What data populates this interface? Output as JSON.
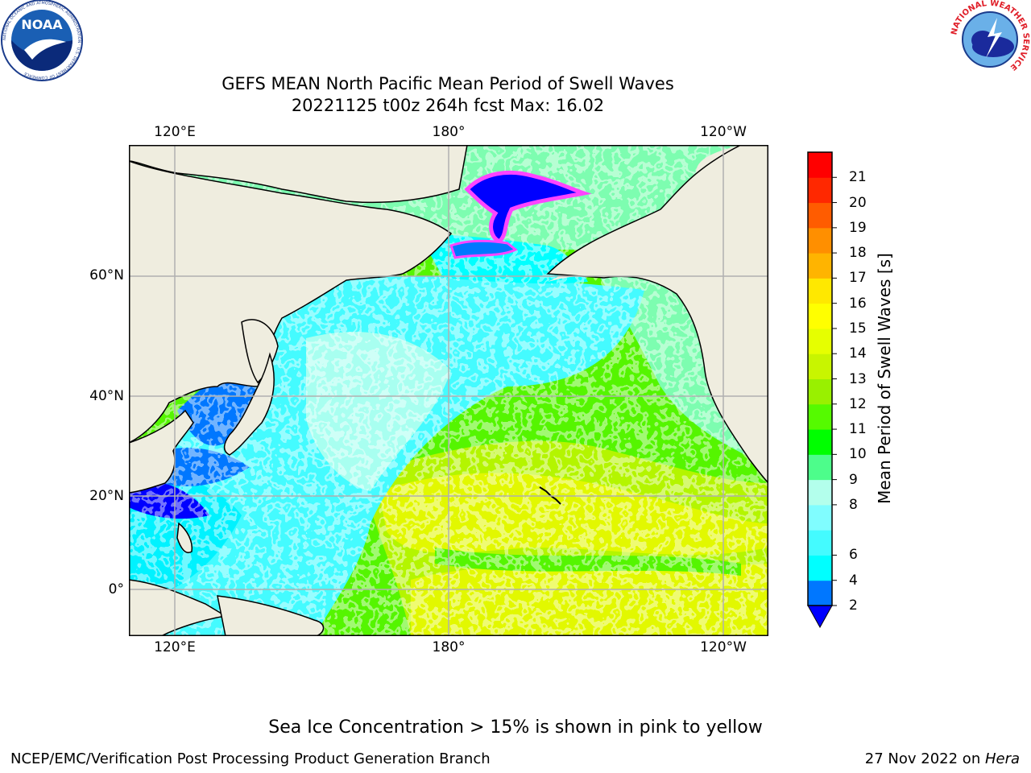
{
  "header": {
    "title_line1": "GEFS MEAN North Pacific Mean Period of Swell Waves",
    "title_line2": "20221125 t00z 264h fcst   Max: 16.02"
  },
  "logos": {
    "noaa_text": "NOAA",
    "noaa_ring_text": "NATIONAL OCEANIC AND ATMOSPHERIC ADMINISTRATION · U.S. DEPARTMENT OF COMMERCE",
    "nws_ring_text": "NATIONAL WEATHER SERVICE"
  },
  "map": {
    "lon_labels": [
      "120°E",
      "180°",
      "120°W"
    ],
    "lat_labels": [
      "60°N",
      "40°N",
      "20°N",
      "0°"
    ],
    "land_color": "#efeddf",
    "coast_color": "#000000",
    "grid_color": "#b0b0b0"
  },
  "chart_data": {
    "type": "heatmap",
    "title": "GEFS MEAN North Pacific Mean Period of Swell Waves",
    "variable": "Mean Period of Swell Waves [s]",
    "max_value": 16.02,
    "levels": [
      2,
      4,
      6,
      7,
      8,
      9,
      10,
      11,
      12,
      13,
      14,
      15,
      16,
      17,
      18,
      19,
      20,
      21
    ],
    "colors": [
      "#0077ff",
      "#00ffff",
      "#44fbff",
      "#80fdff",
      "#b3ffec",
      "#4dfd8b",
      "#00ff00",
      "#55fa00",
      "#99f000",
      "#c8f500",
      "#e6ff00",
      "#ffff00",
      "#ffe800",
      "#ffb400",
      "#ff8f00",
      "#ff5c00",
      "#ff2800",
      "#ff0000"
    ],
    "extend_low_color": "#0000ff",
    "tick_labels": [
      "2",
      "4",
      "6",
      "8",
      "9",
      "10",
      "11",
      "12",
      "13",
      "14",
      "15",
      "16",
      "17",
      "18",
      "19",
      "20",
      "21"
    ],
    "colorbar_label": "Mean Period of Swell Waves [s]",
    "ice_colors": [
      "#ff44ff",
      "#ff99dd",
      "#ffcc66"
    ]
  },
  "footer": {
    "ice_note": "Sea Ice Concentration > 15% is shown in pink to yellow",
    "credit": "NCEP/EMC/Verification Post Processing Product Generation Branch",
    "date": "27 Nov 2022 on ",
    "host": "Hera"
  }
}
